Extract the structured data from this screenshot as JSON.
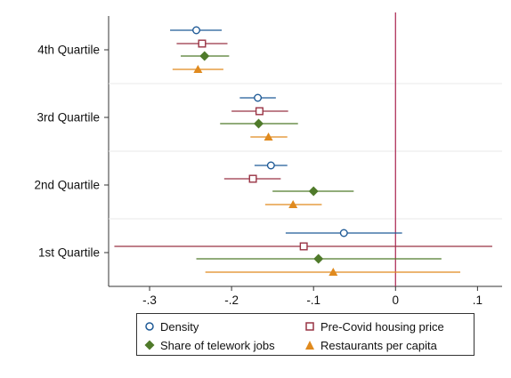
{
  "chart_data": {
    "type": "scatter",
    "subtype": "coefficient-plot-with-confidence-intervals",
    "categories": [
      "4th Quartile",
      "3rd Quartile",
      "2nd Quartile",
      "1st Quartile"
    ],
    "xlim": [
      -0.35,
      0.13
    ],
    "xticks": [
      -0.3,
      -0.2,
      -0.1,
      0,
      0.1
    ],
    "xtick_labels": [
      "-.3",
      "-.2",
      "-.1",
      "0",
      ".1"
    ],
    "reference_line_x": 0,
    "reference_line_color": "#b0325a",
    "grid": "horizontal separators between quartiles",
    "legend_position": "bottom",
    "series": [
      {
        "name": "Density",
        "marker": "hollow-circle",
        "color": "#1f5a96",
        "points": [
          {
            "category": "4th Quartile",
            "estimate": -0.243,
            "low": -0.275,
            "high": -0.212
          },
          {
            "category": "3rd Quartile",
            "estimate": -0.168,
            "low": -0.19,
            "high": -0.146
          },
          {
            "category": "2nd Quartile",
            "estimate": -0.152,
            "low": -0.172,
            "high": -0.132
          },
          {
            "category": "1st Quartile",
            "estimate": -0.063,
            "low": -0.134,
            "high": 0.008
          }
        ]
      },
      {
        "name": "Pre-Covid housing price",
        "marker": "hollow-square",
        "color": "#993344",
        "points": [
          {
            "category": "4th Quartile",
            "estimate": -0.236,
            "low": -0.267,
            "high": -0.205
          },
          {
            "category": "3rd Quartile",
            "estimate": -0.166,
            "low": -0.2,
            "high": -0.131
          },
          {
            "category": "2nd Quartile",
            "estimate": -0.174,
            "low": -0.209,
            "high": -0.14
          },
          {
            "category": "1st Quartile",
            "estimate": -0.112,
            "low": -0.343,
            "high": 0.118
          }
        ]
      },
      {
        "name": "Share of telework jobs",
        "marker": "filled-diamond",
        "color": "#4f7a2a",
        "points": [
          {
            "category": "4th Quartile",
            "estimate": -0.233,
            "low": -0.262,
            "high": -0.203
          },
          {
            "category": "3rd Quartile",
            "estimate": -0.167,
            "low": -0.214,
            "high": -0.119
          },
          {
            "category": "2nd Quartile",
            "estimate": -0.1,
            "low": -0.15,
            "high": -0.051
          },
          {
            "category": "1st Quartile",
            "estimate": -0.094,
            "low": -0.243,
            "high": 0.056
          }
        ]
      },
      {
        "name": "Restaurants per capita",
        "marker": "filled-triangle",
        "color": "#e08a1e",
        "points": [
          {
            "category": "4th Quartile",
            "estimate": -0.241,
            "low": -0.272,
            "high": -0.21
          },
          {
            "category": "3rd Quartile",
            "estimate": -0.155,
            "low": -0.177,
            "high": -0.132
          },
          {
            "category": "2nd Quartile",
            "estimate": -0.125,
            "low": -0.159,
            "high": -0.09
          },
          {
            "category": "1st Quartile",
            "estimate": -0.076,
            "low": -0.232,
            "high": 0.079
          }
        ]
      }
    ]
  }
}
